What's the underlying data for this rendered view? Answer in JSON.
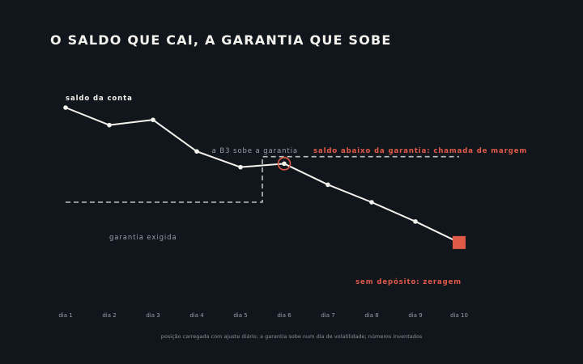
{
  "title": "O SALDO QUE CAI, A GARANTIA QUE SOBE",
  "footnote": "posição carregada com ajuste diário; a garantia sobe num dia de volatilidade; números inventados",
  "colors": {
    "background": "#11151c",
    "line": "#f4f2ec",
    "threshold": "#bfbfbf",
    "alert": "#e05a47",
    "muted": "#9a9ea6"
  },
  "chart_data": {
    "type": "line",
    "title": "O SALDO QUE CAI, A GARANTIA QUE SOBE",
    "categories": [
      "dia 1",
      "dia 2",
      "dia 3",
      "dia 4",
      "dia 5",
      "dia 6",
      "dia 7",
      "dia 8",
      "dia 9",
      "dia 10"
    ],
    "series": [
      {
        "name": "saldo da conta",
        "values": [
          100,
          90,
          93,
          75,
          66,
          68,
          56,
          46,
          35,
          23
        ]
      }
    ],
    "threshold": {
      "name": "garantia exigida",
      "steps": [
        {
          "from": "dia 1",
          "to": "dia 5.5",
          "value": 46
        },
        {
          "from": "dia 5.5",
          "to": "dia 10",
          "value": 72
        }
      ]
    },
    "ylim": [
      10,
      100
    ],
    "grid": false,
    "legend": "none",
    "annotations": {
      "series_label": "saldo da conta",
      "threshold_label": "garantia exigida",
      "step_label": "a B3 sobe a garantia",
      "margin_call_label": "saldo abaixo da garantia: chamada de margem",
      "margin_call_point": "dia 6",
      "liquidation_label": "sem depósito: zeragem",
      "liquidation_point": "dia 10"
    }
  }
}
